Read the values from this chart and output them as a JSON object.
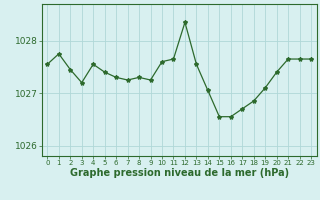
{
  "x": [
    0,
    1,
    2,
    3,
    4,
    5,
    6,
    7,
    8,
    9,
    10,
    11,
    12,
    13,
    14,
    15,
    16,
    17,
    18,
    19,
    20,
    21,
    22,
    23
  ],
  "y": [
    1027.55,
    1027.75,
    1027.45,
    1027.2,
    1027.55,
    1027.4,
    1027.3,
    1027.25,
    1027.3,
    1027.25,
    1027.6,
    1027.65,
    1028.35,
    1027.55,
    1027.05,
    1026.55,
    1026.55,
    1026.7,
    1026.85,
    1027.1,
    1027.4,
    1027.65,
    1027.65,
    1027.65
  ],
  "line_color": "#2d6a2d",
  "marker": "*",
  "marker_size": 3,
  "bg_color": "#d8f0f0",
  "grid_color": "#b0d8d8",
  "xlabel": "Graphe pression niveau de la mer (hPa)",
  "xlabel_fontsize": 7,
  "ytick_fontsize": 6.5,
  "xtick_fontsize": 5,
  "yticks": [
    1026,
    1027,
    1028
  ],
  "ylim": [
    1025.8,
    1028.7
  ],
  "xlim": [
    -0.5,
    23.5
  ]
}
